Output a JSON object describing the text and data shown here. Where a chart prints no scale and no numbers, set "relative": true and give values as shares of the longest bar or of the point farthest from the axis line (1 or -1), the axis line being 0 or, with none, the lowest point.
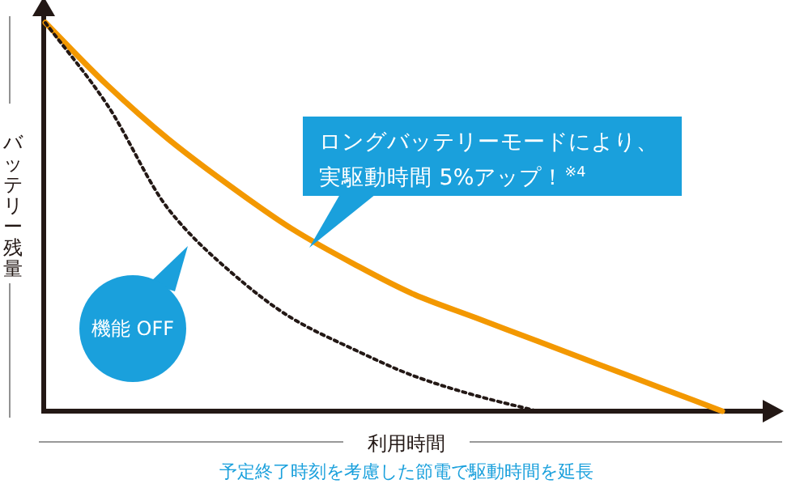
{
  "chart_data": {
    "type": "line",
    "relative": true,
    "xlabel": "利用時間",
    "ylabel": "バッテリー残量",
    "categories": [
      null,
      null,
      null,
      null,
      null,
      null,
      null,
      null,
      null,
      null,
      null,
      null
    ],
    "series": [
      {
        "name": "機能 OFF",
        "color": "#231815",
        "line_style": "dotted",
        "values": [
          1.0,
          0.79,
          0.52,
          0.36,
          0.24,
          0.16,
          0.09,
          0.04,
          0.0,
          null,
          null,
          null
        ]
      },
      {
        "color": "#f39800",
        "line_style": "solid",
        "values": [
          1.0,
          0.84,
          0.7,
          0.58,
          0.47,
          0.38,
          0.3,
          0.24,
          0.18,
          0.12,
          0.06,
          0.0
        ]
      }
    ],
    "annotations": [
      "ロングバッテリーモードにより、",
      "実駆動時間 5%アップ！$^{※4}$",
      "予定終了時刻を考慮した節電で駆動時間を延長"
    ]
  }
}
